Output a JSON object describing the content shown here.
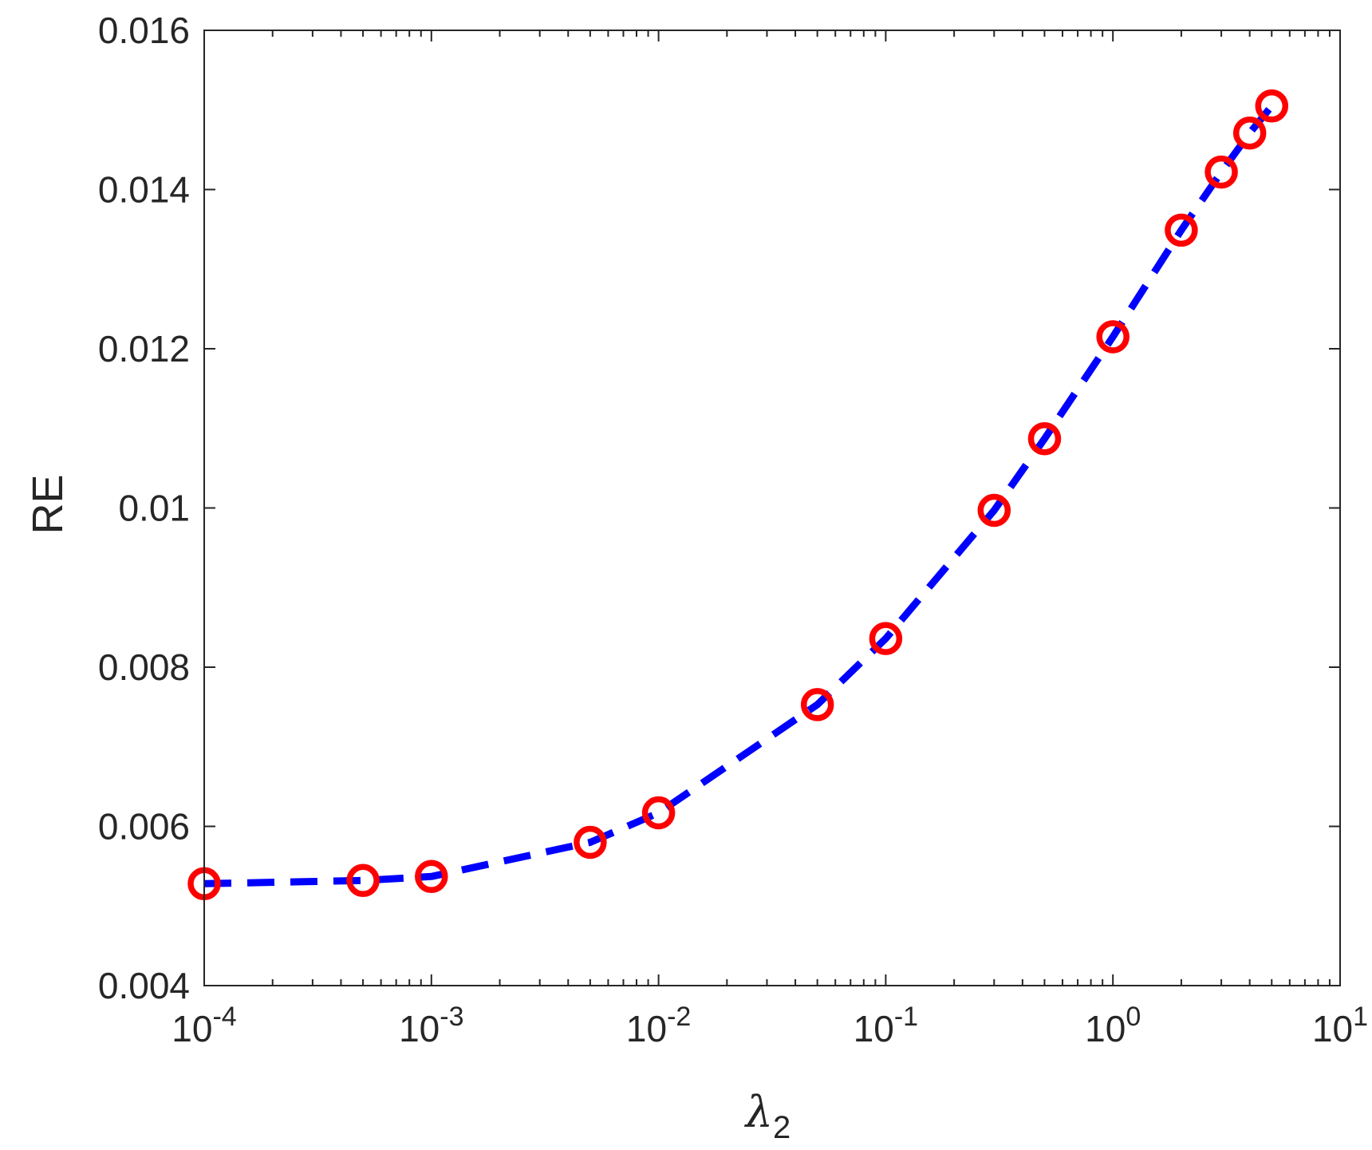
{
  "chart_data": {
    "type": "line",
    "xscale": "log",
    "xlabel": "λ",
    "xlabel_sub": "2",
    "ylabel": "RE",
    "xlim": [
      0.0001,
      10
    ],
    "ylim": [
      0.004,
      0.016
    ],
    "x_ticks": [
      {
        "value": 0.0001,
        "base": "10",
        "exp": "-4"
      },
      {
        "value": 0.001,
        "base": "10",
        "exp": "-3"
      },
      {
        "value": 0.01,
        "base": "10",
        "exp": "-2"
      },
      {
        "value": 0.1,
        "base": "10",
        "exp": "-1"
      },
      {
        "value": 1,
        "base": "10",
        "exp": "0"
      },
      {
        "value": 10,
        "base": "10",
        "exp": "1"
      }
    ],
    "y_ticks": [
      {
        "value": 0.004,
        "label": "0.004"
      },
      {
        "value": 0.006,
        "label": "0.006"
      },
      {
        "value": 0.008,
        "label": "0.008"
      },
      {
        "value": 0.01,
        "label": "0.01"
      },
      {
        "value": 0.012,
        "label": "0.012"
      },
      {
        "value": 0.014,
        "label": "0.014"
      },
      {
        "value": 0.016,
        "label": "0.016"
      }
    ],
    "grid": false,
    "box": true,
    "series": [
      {
        "line_style": "dashed",
        "line_color": "#0000ff",
        "marker": "circle",
        "marker_color": "#ff0000",
        "x": [
          0.0001,
          0.0005,
          0.001,
          0.005,
          0.01,
          0.05,
          0.1,
          0.3,
          0.5,
          1,
          2,
          3,
          4,
          5
        ],
        "y": [
          0.00528,
          0.00532,
          0.00537,
          0.0058,
          0.00617,
          0.00753,
          0.00836,
          0.00997,
          0.01087,
          0.01215,
          0.01349,
          0.01422,
          0.01471,
          0.01505
        ]
      }
    ]
  }
}
